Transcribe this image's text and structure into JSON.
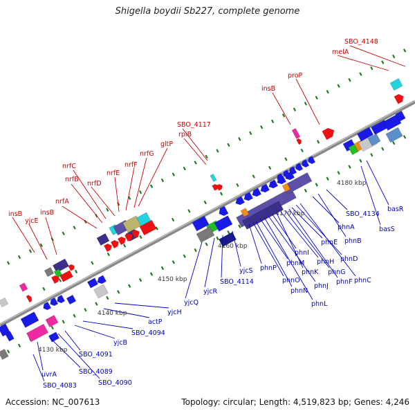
{
  "title": "Shigella boydii Sb227, complete genome",
  "footer": {
    "accession": "Accession: NC_007613",
    "topology": "Topology: circular; Length: 4,519,823 bp; Genes: 4,246"
  },
  "colors": {
    "backbone": "#8a8a8a",
    "tick": "#1e7b1e",
    "forward_label": "#cc0000",
    "reverse_label": "#0000cc"
  },
  "scale_labels": [
    "4130 kbp",
    "4140 kbp",
    "4150 kbp",
    "4160 kbp",
    "4170 kbp",
    "4180 kbp"
  ],
  "forward_genes": [
    "insB",
    "yjcE",
    "insB",
    "nrfA",
    "nrfB",
    "nrfC",
    "nrfD",
    "nrfE",
    "nrfF",
    "nrfG",
    "gltP",
    "rpiB",
    "SBO_4117",
    "insB",
    "proP",
    "melA",
    "SBO_4148"
  ],
  "reverse_genes": [
    "SBO_4083",
    "uvrA",
    "SBO_4089",
    "SBO_4090",
    "SBO_4091",
    "yjcB",
    "SBO_4094",
    "actP",
    "yjcH",
    "yjcQ",
    "yjcR",
    "SBO_4114",
    "yjcS",
    "phnP",
    "phnO",
    "phnN",
    "phnM",
    "phnL",
    "phnJ",
    "phnI",
    "phnK",
    "phnH",
    "phnG",
    "phnF",
    "phnE",
    "phnD",
    "phnC",
    "phnA",
    "phnB",
    "SBO_4134",
    "basS",
    "basR"
  ]
}
